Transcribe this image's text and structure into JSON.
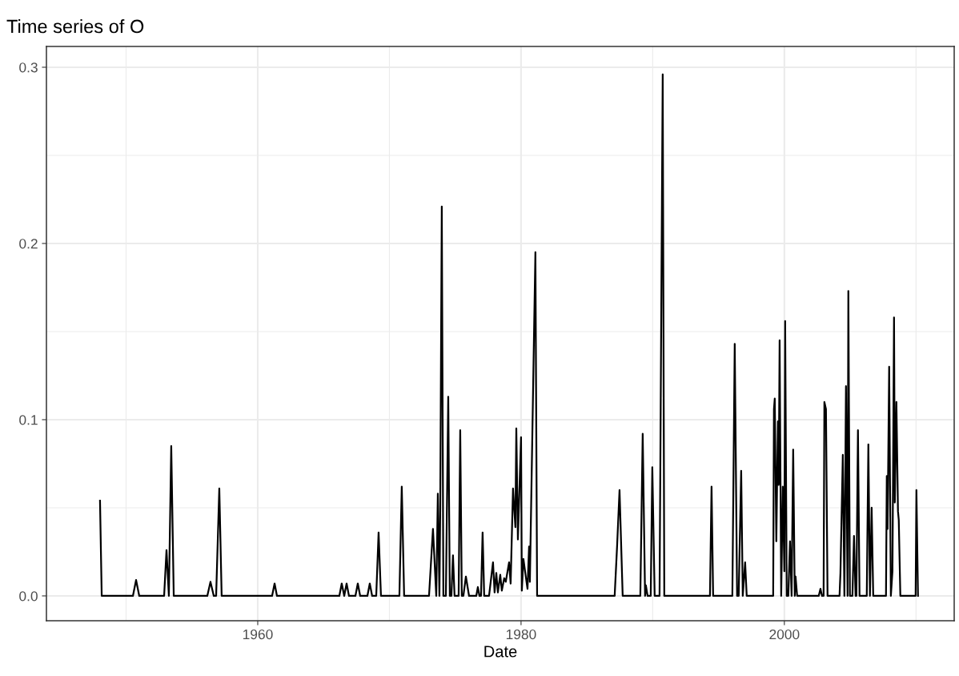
{
  "chart_data": {
    "type": "line",
    "title": "Time series of O",
    "xlabel": "Date",
    "x": [
      1948.02,
      1948.15,
      1950.52,
      1950.76,
      1951.0,
      1952.89,
      1953.07,
      1953.25,
      1953.43,
      1953.62,
      1956.17,
      1956.41,
      1956.66,
      1956.84,
      1957.08,
      1957.26,
      1961.09,
      1961.28,
      1961.46,
      1966.2,
      1966.38,
      1966.57,
      1966.75,
      1966.93,
      1967.42,
      1967.6,
      1967.78,
      1968.33,
      1968.51,
      1968.69,
      1969.0,
      1969.18,
      1969.36,
      1970.76,
      1970.94,
      1971.12,
      1973.01,
      1973.31,
      1973.56,
      1973.68,
      1973.8,
      1973.86,
      1973.98,
      1974.1,
      1974.29,
      1974.47,
      1974.59,
      1974.71,
      1974.83,
      1974.95,
      1975.26,
      1975.38,
      1975.5,
      1975.62,
      1975.81,
      1976.05,
      1976.6,
      1976.72,
      1976.84,
      1976.96,
      1977.08,
      1977.2,
      1977.57,
      1977.87,
      1977.99,
      1978.12,
      1978.24,
      1978.42,
      1978.54,
      1978.72,
      1978.84,
      1979.09,
      1979.21,
      1979.39,
      1979.57,
      1979.64,
      1979.76,
      1980.0,
      1980.06,
      1980.18,
      1980.36,
      1980.49,
      1980.61,
      1980.67,
      1981.09,
      1981.22,
      1987.11,
      1987.3,
      1987.48,
      1987.72,
      1989.06,
      1989.24,
      1989.42,
      1989.48,
      1989.61,
      1989.85,
      1989.97,
      1990.15,
      1990.52,
      1990.76,
      1990.88,
      1994.35,
      1994.47,
      1994.59,
      1996.05,
      1996.23,
      1996.41,
      1996.53,
      1996.72,
      1996.84,
      1997.02,
      1997.14,
      1999.15,
      1999.21,
      1999.27,
      1999.39,
      1999.51,
      1999.57,
      1999.64,
      1999.76,
      1999.88,
      2000.0,
      2000.06,
      2000.18,
      2000.3,
      2000.43,
      2000.55,
      2000.67,
      2000.79,
      2000.85,
      2000.97,
      2002.61,
      2002.74,
      2002.86,
      2002.98,
      2003.04,
      2003.16,
      2003.28,
      2004.19,
      2004.26,
      2004.44,
      2004.56,
      2004.68,
      2004.8,
      2004.86,
      2004.98,
      2005.17,
      2005.29,
      2005.41,
      2005.47,
      2005.59,
      2005.71,
      2006.26,
      2006.38,
      2006.5,
      2006.63,
      2006.75,
      2007.72,
      2007.78,
      2007.84,
      2007.96,
      2008.09,
      2008.21,
      2008.33,
      2008.39,
      2008.51,
      2008.63,
      2008.69,
      2008.81,
      2009.97,
      2010.03,
      2010.15
    ],
    "series": [
      {
        "color": "#000000",
        "values": [
          0.054,
          0,
          0,
          0.009,
          0,
          0,
          0.026,
          0,
          0.085,
          0,
          0,
          0.008,
          0,
          0,
          0.061,
          0,
          0,
          0.007,
          0,
          0,
          0.007,
          0,
          0.007,
          0,
          0,
          0.007,
          0,
          0,
          0.007,
          0,
          0,
          0.036,
          0,
          0,
          0.062,
          0,
          0,
          0.038,
          0,
          0.058,
          0,
          0.047,
          0.221,
          0,
          0,
          0.113,
          0,
          0,
          0.023,
          0,
          0,
          0.094,
          0,
          0,
          0.011,
          0,
          0,
          0.005,
          0,
          0,
          0.036,
          0,
          0,
          0.019,
          0.002,
          0.013,
          0.002,
          0.012,
          0.003,
          0.01,
          0.008,
          0.019,
          0.007,
          0.061,
          0.039,
          0.095,
          0.032,
          0.09,
          0.003,
          0.021,
          0.011,
          0.004,
          0.028,
          0.008,
          0.195,
          0,
          0,
          0.029,
          0.06,
          0,
          0,
          0.092,
          0,
          0.006,
          0,
          0,
          0.073,
          0,
          0,
          0.296,
          0,
          0,
          0.062,
          0,
          0,
          0.143,
          0,
          0,
          0.071,
          0,
          0.019,
          0,
          0,
          0.106,
          0.112,
          0.031,
          0.099,
          0.063,
          0.145,
          0,
          0.062,
          0.014,
          0.156,
          0,
          0,
          0.031,
          0,
          0.083,
          0,
          0.011,
          0,
          0,
          0.004,
          0,
          0,
          0.11,
          0.106,
          0,
          0,
          0.013,
          0.08,
          0,
          0.119,
          0,
          0.173,
          0,
          0,
          0.034,
          0,
          0,
          0.094,
          0,
          0,
          0.086,
          0,
          0.05,
          0,
          0,
          0.068,
          0.038,
          0.13,
          0,
          0.014,
          0.158,
          0.053,
          0.11,
          0.048,
          0.043,
          0,
          0,
          0.06,
          0
        ]
      }
    ],
    "xlim": [
      1943.95,
      2012.9
    ],
    "ylim": [
      -0.0141,
      0.3118
    ],
    "xticks": [
      1960,
      1980,
      2000
    ],
    "yticks": [
      {
        "value": 0,
        "label": "0.0"
      },
      {
        "value": 0.1,
        "label": "0.1"
      },
      {
        "value": 0.2,
        "label": "0.2"
      },
      {
        "value": 0.3,
        "label": "0.3"
      }
    ],
    "grid": true,
    "line_style": "solid"
  }
}
